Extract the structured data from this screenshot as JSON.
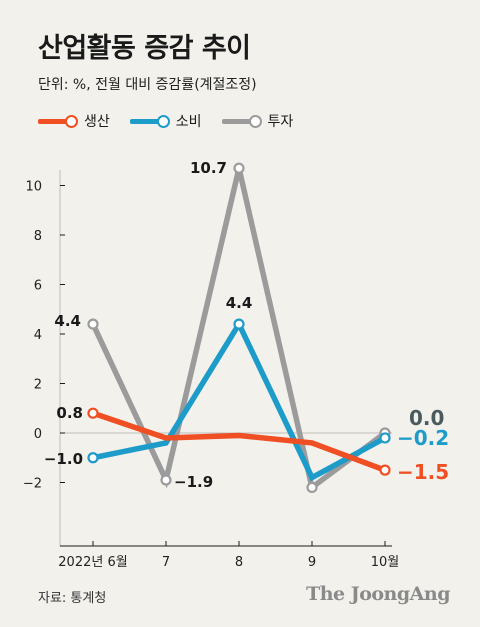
{
  "title": "산업활동 증감 추이",
  "unit": "단위: %, 전월 대비 증감률(계절조정)",
  "source": "자료: 통계청",
  "brand": "The JoongAng",
  "chart_data": {
    "type": "line",
    "categories": [
      "2022년 6월",
      "7",
      "8",
      "9",
      "10월"
    ],
    "ylim": [
      -5,
      11
    ],
    "yticks": [
      -2,
      0,
      2,
      4,
      6,
      8,
      10
    ],
    "ytick_labels": [
      "−2",
      "0",
      "2",
      "4",
      "6",
      "8",
      "10"
    ],
    "legend_position": "top-left",
    "series": [
      {
        "name": "생산",
        "color": "#f04e23",
        "values": [
          0.8,
          -0.2,
          -0.1,
          -0.4,
          -1.5
        ]
      },
      {
        "name": "소비",
        "color": "#1d9bc9",
        "values": [
          -1.0,
          -0.4,
          4.4,
          -1.8,
          -0.2
        ]
      },
      {
        "name": "투자",
        "color": "#9b9b9b",
        "values": [
          4.4,
          -1.9,
          10.7,
          -2.2,
          0.0
        ]
      }
    ],
    "data_labels": [
      {
        "text": "0.8",
        "series": 0,
        "index": 0,
        "color": "#1a1a1a"
      },
      {
        "text": "−1.0",
        "series": 1,
        "index": 0,
        "color": "#1a1a1a"
      },
      {
        "text": "4.4",
        "series": 2,
        "index": 0,
        "color": "#1a1a1a"
      },
      {
        "text": "−1.9",
        "series": 2,
        "index": 1,
        "color": "#1a1a1a"
      },
      {
        "text": "10.7",
        "series": 2,
        "index": 2,
        "color": "#1a1a1a"
      },
      {
        "text": "4.4",
        "series": 1,
        "index": 2,
        "color": "#1a1a1a"
      },
      {
        "text": "0.0",
        "series": 2,
        "index": 4,
        "color": "#4a5a5e"
      },
      {
        "text": "−0.2",
        "series": 1,
        "index": 4,
        "color": "#1d9bc9"
      },
      {
        "text": "−1.5",
        "series": 0,
        "index": 4,
        "color": "#f04e23"
      }
    ]
  }
}
